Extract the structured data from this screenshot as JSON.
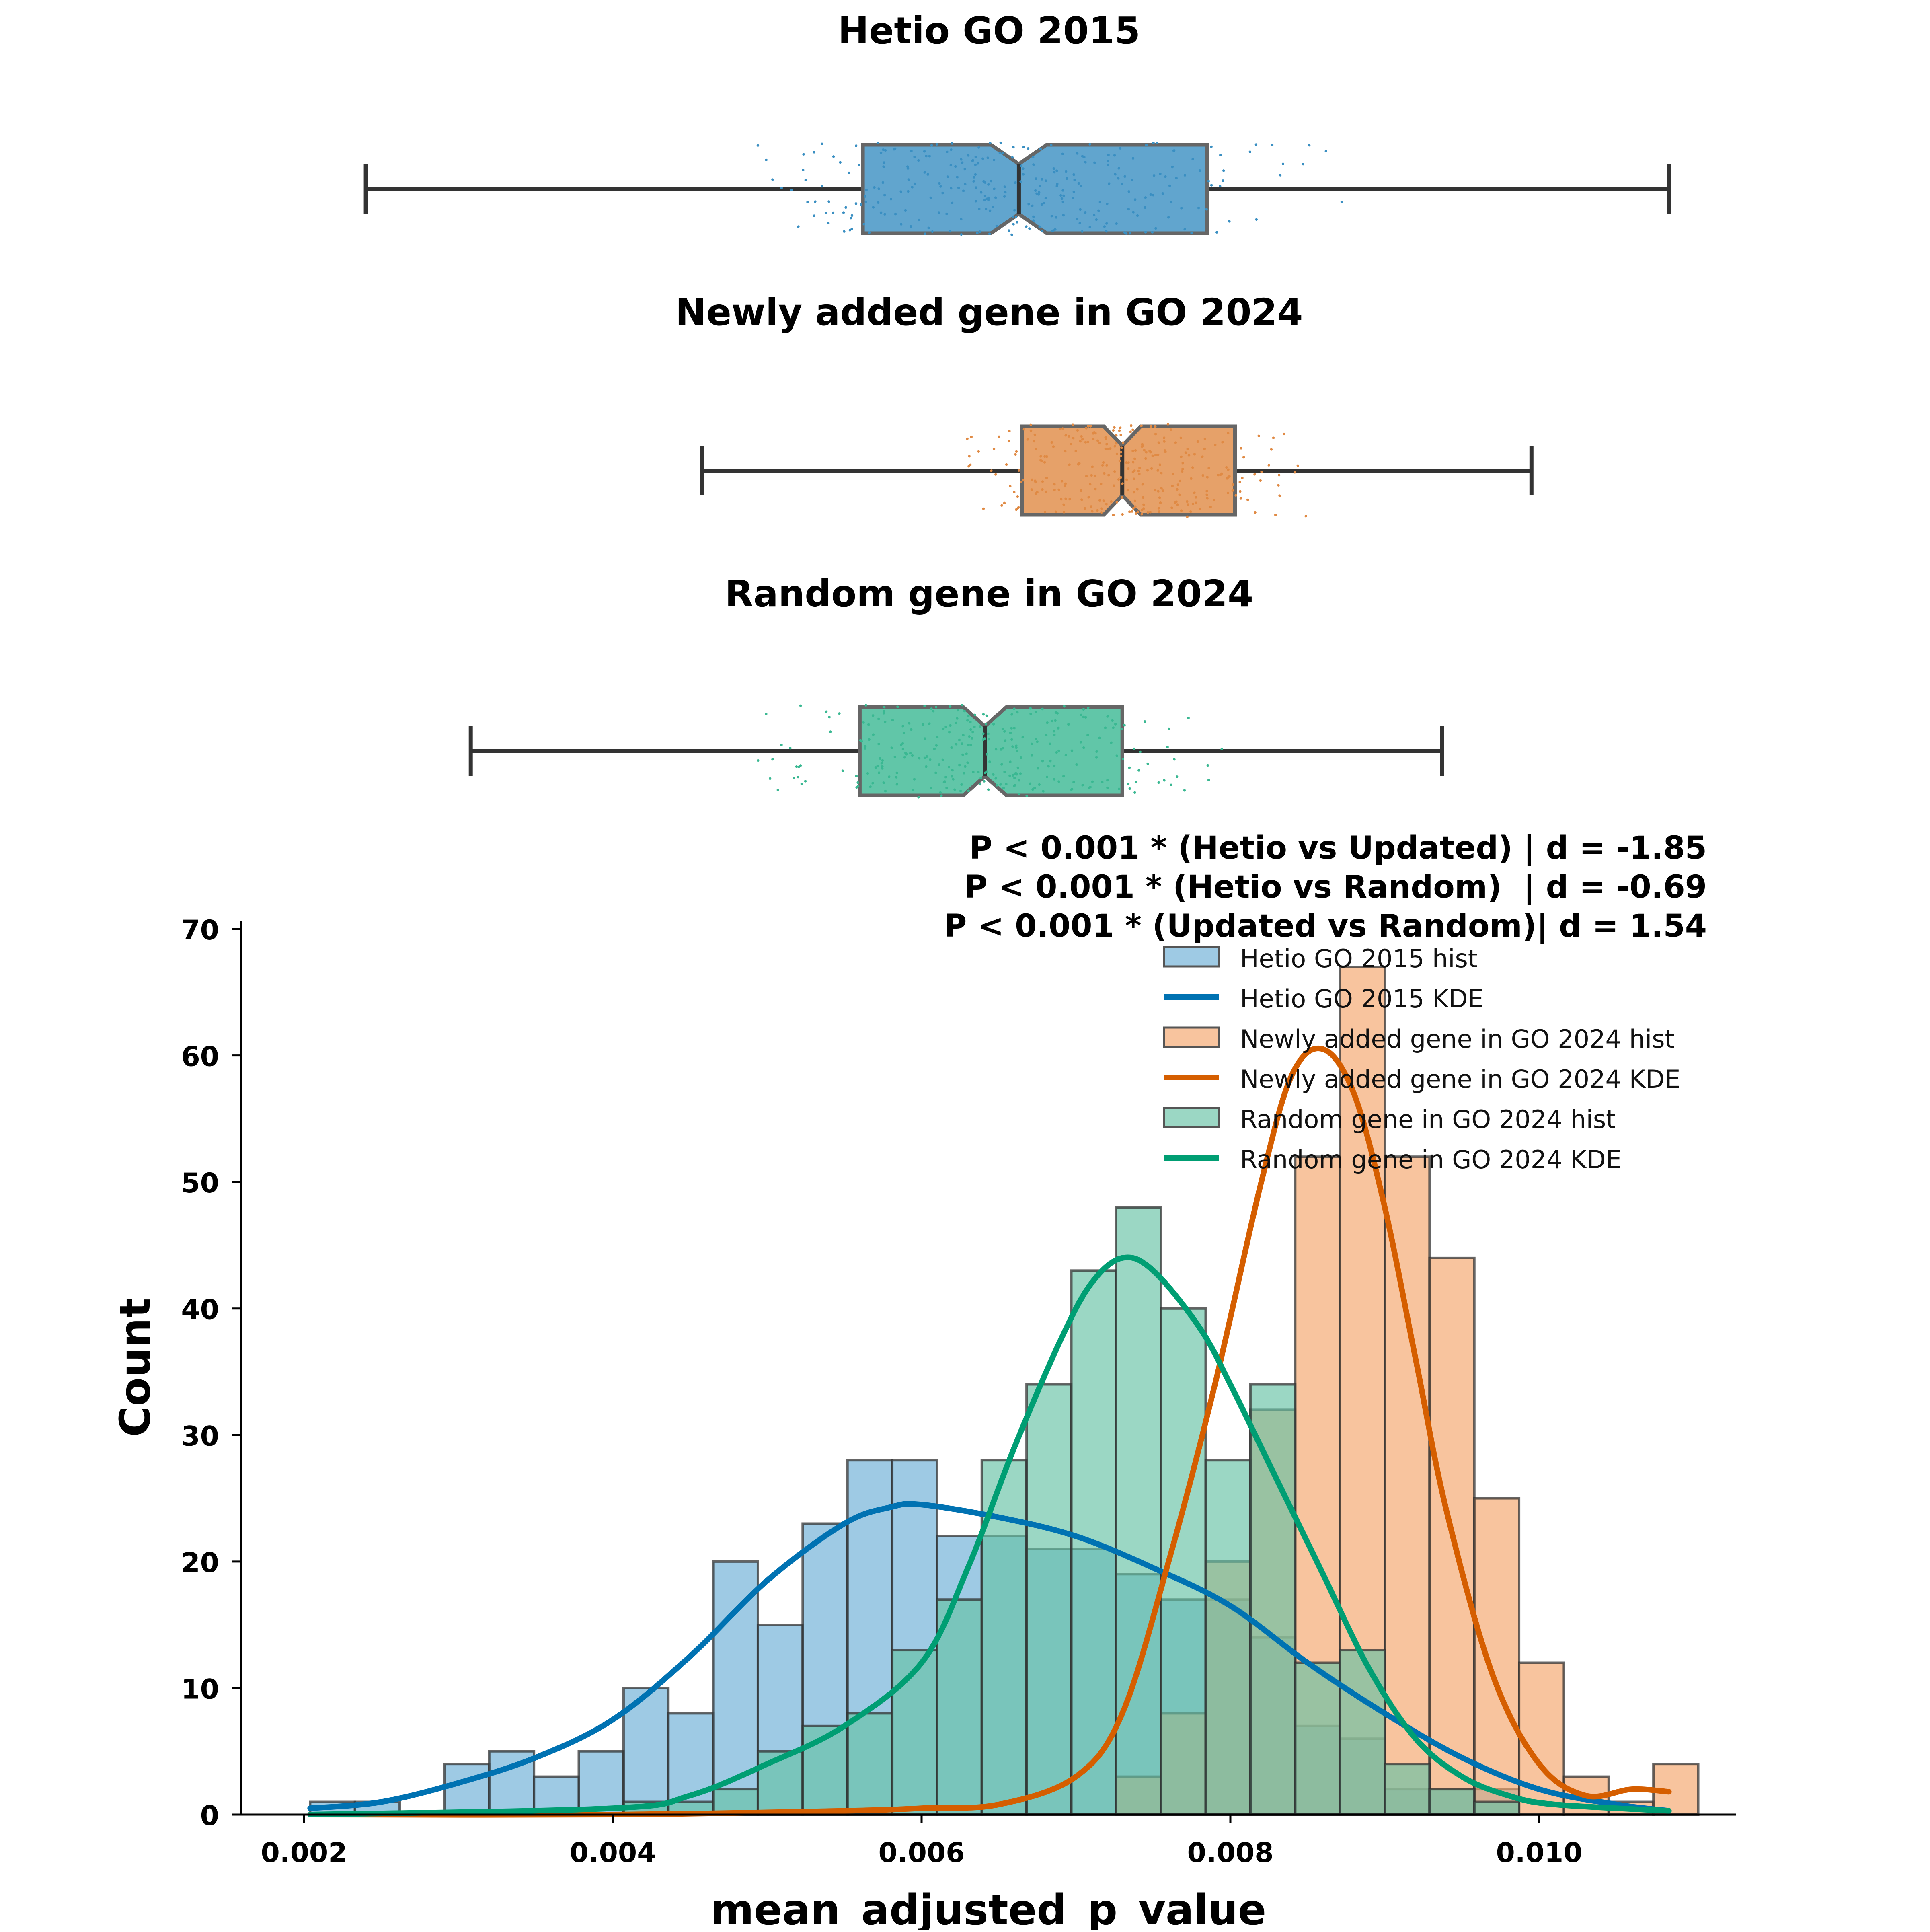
{
  "chart_data": [
    {
      "type": "box",
      "title": "Hetio GO 2015",
      "color": "#3a8fc2",
      "whisker_low": 0.0024,
      "q1": 0.00562,
      "median": 0.00663,
      "q3": 0.00785,
      "whisker_high": 0.01084,
      "notch_low": 0.00645,
      "notch_high": 0.00681,
      "outliers_visible": false,
      "jitter_points": "scattered samples overlaid on box"
    },
    {
      "type": "box",
      "title": "Newly added gene in GO 2024",
      "color": "#e08a44",
      "whisker_low": 0.00458,
      "q1": 0.00665,
      "median": 0.0073,
      "q3": 0.00803,
      "whisker_high": 0.00995,
      "notch_low": 0.00718,
      "notch_high": 0.00742,
      "outliers_visible": false,
      "jitter_points": "scattered samples overlaid on box"
    },
    {
      "type": "box",
      "title": "Random gene in GO 2024",
      "color": "#3ab892",
      "whisker_low": 0.00308,
      "q1": 0.0056,
      "median": 0.00641,
      "q3": 0.0073,
      "whisker_high": 0.00937,
      "notch_low": 0.00627,
      "notch_high": 0.00655,
      "outliers_visible": false,
      "jitter_points": "scattered samples overlaid on box"
    },
    {
      "type": "histogram",
      "xlabel": "mean_adjusted_p_value",
      "ylabel": "Count",
      "xlim": [
        0.0018,
        0.0113
      ],
      "ylim": [
        0,
        70
      ],
      "xticks": [
        "0.002",
        "0.004",
        "0.006",
        "0.008",
        "0.010"
      ],
      "yticks": [
        "0",
        "10",
        "20",
        "30",
        "40",
        "50",
        "60",
        "70"
      ],
      "bin_edges": [
        0.00204,
        0.00233,
        0.00262,
        0.00291,
        0.0032,
        0.00349,
        0.00378,
        0.00407,
        0.00436,
        0.00465,
        0.00494,
        0.00523,
        0.00552,
        0.00581,
        0.0061,
        0.00639,
        0.00668,
        0.00697,
        0.00726,
        0.00755,
        0.00784,
        0.00813,
        0.00842,
        0.00871,
        0.009,
        0.00929,
        0.00958,
        0.00987,
        0.01016,
        0.01045,
        0.01074,
        0.01103
      ],
      "series": [
        {
          "name": "Hetio GO 2015 hist",
          "kind": "hist",
          "color": "#6aaed6",
          "counts": [
            1,
            1,
            0,
            4,
            5,
            3,
            5,
            10,
            8,
            20,
            15,
            23,
            28,
            28,
            22,
            22,
            21,
            21,
            19,
            17,
            17,
            14,
            7,
            6,
            2,
            2,
            2,
            0,
            0,
            0,
            0
          ]
        },
        {
          "name": "Hetio GO 2015 KDE",
          "kind": "kde",
          "color": "#0072b2",
          "x": [
            0.00204,
            0.0025,
            0.003,
            0.0035,
            0.004,
            0.0045,
            0.005,
            0.0055,
            0.0058,
            0.006,
            0.0065,
            0.007,
            0.0075,
            0.008,
            0.0085,
            0.009,
            0.0095,
            0.01,
            0.0105,
            0.01084
          ],
          "y": [
            0.5,
            1.0,
            2.5,
            4.5,
            7.5,
            12.5,
            18.5,
            23.0,
            24.3,
            24.5,
            23.5,
            22.0,
            19.5,
            16.5,
            12.0,
            8.0,
            4.5,
            2.0,
            0.8,
            0.3
          ]
        },
        {
          "name": "Newly added gene in GO 2024 hist",
          "kind": "hist",
          "color": "#f4a46a",
          "counts": [
            0,
            0,
            0,
            0,
            0,
            0,
            0,
            0,
            0,
            0,
            0,
            0,
            0,
            0,
            0,
            0,
            0,
            0,
            3,
            8,
            20,
            32,
            52,
            67,
            52,
            44,
            25,
            12,
            3,
            1,
            4
          ]
        },
        {
          "name": "Newly added gene in GO 2024 KDE",
          "kind": "kde",
          "color": "#d55e00",
          "x": [
            0.00204,
            0.004,
            0.0055,
            0.006,
            0.0065,
            0.007,
            0.0073,
            0.0076,
            0.0079,
            0.0082,
            0.0084,
            0.0086,
            0.0088,
            0.009,
            0.0092,
            0.0094,
            0.0097,
            0.01,
            0.0103,
            0.0106,
            0.01084
          ],
          "y": [
            0.0,
            0.0,
            0.3,
            0.5,
            0.8,
            3.0,
            8.0,
            20.0,
            34.0,
            50.0,
            58.5,
            60.5,
            57.0,
            48.0,
            36.0,
            24.0,
            11.0,
            4.0,
            1.5,
            2.0,
            1.8
          ]
        },
        {
          "name": "Random gene in GO 2024 hist",
          "kind": "hist",
          "color": "#66c2a5",
          "counts": [
            0,
            0,
            0,
            0,
            0,
            0,
            0,
            1,
            1,
            2,
            5,
            7,
            8,
            13,
            17,
            28,
            34,
            43,
            48,
            40,
            28,
            34,
            12,
            13,
            4,
            2,
            1,
            0,
            0,
            0,
            0
          ]
        },
        {
          "name": "Random gene in GO 2024 KDE",
          "kind": "kde",
          "color": "#009e73",
          "x": [
            0.00204,
            0.004,
            0.0045,
            0.005,
            0.0055,
            0.006,
            0.0063,
            0.0066,
            0.0069,
            0.0071,
            0.0073,
            0.0075,
            0.0078,
            0.008,
            0.0083,
            0.0086,
            0.0089,
            0.0092,
            0.0095,
            0.0098,
            0.0101,
            0.01084
          ],
          "y": [
            0.0,
            0.5,
            1.5,
            4.0,
            7.0,
            12.0,
            19.5,
            29.0,
            37.5,
            42.0,
            44.0,
            43.0,
            38.5,
            34.0,
            26.5,
            19.0,
            11.5,
            6.0,
            3.0,
            1.5,
            0.8,
            0.3
          ]
        }
      ],
      "annotations": [
        "P < 0.001 * (Hetio vs Updated) | d = -1.85",
        "P < 0.001 * (Hetio vs Random)  | d = -0.69",
        "P < 0.001 * (Updated vs Random)| d = 1.54"
      ],
      "legend_position": "upper-right"
    }
  ]
}
